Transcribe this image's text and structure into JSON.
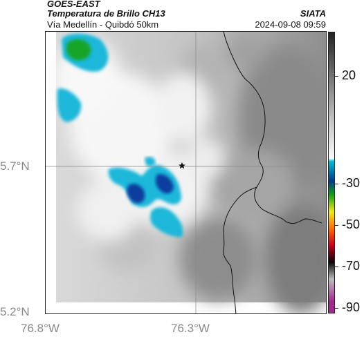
{
  "header": {
    "satellite": "GOES-EAST",
    "product": "Temperatura de Brillo CH13",
    "route": "Vía Medellín - Quibdó 50km",
    "org": "SIATA",
    "datetime": "2024-09-08 09:59"
  },
  "axes": {
    "lat_ticks": [
      "5.7°N",
      "5.2°N"
    ],
    "lon_ticks": [
      "76.8°W",
      "76.3°W"
    ]
  },
  "colorbar": {
    "labels": [
      "20",
      "-30",
      "-50",
      "-70",
      "-90"
    ],
    "colors": {
      "top": "#222222",
      "mid_gray": "#bdbdbd",
      "white": "#f6f6f6",
      "cyan": "#00bcd4",
      "blue": "#003a8c",
      "green": "#17a017",
      "yellow": "#f2ea1a",
      "orange": "#ff6a00",
      "red": "#c8001f",
      "black": "#080808",
      "magenta": "#a02a8c"
    }
  },
  "map": {
    "marker": "star-icon",
    "colors": {
      "land_gray": "#9b9b9b",
      "border": "#111111",
      "cloud_white": "#f5f5f5",
      "cloud_cyan": "#1fb7d9",
      "cloud_blue": "#073c9e",
      "cloud_green": "#18a528"
    }
  }
}
